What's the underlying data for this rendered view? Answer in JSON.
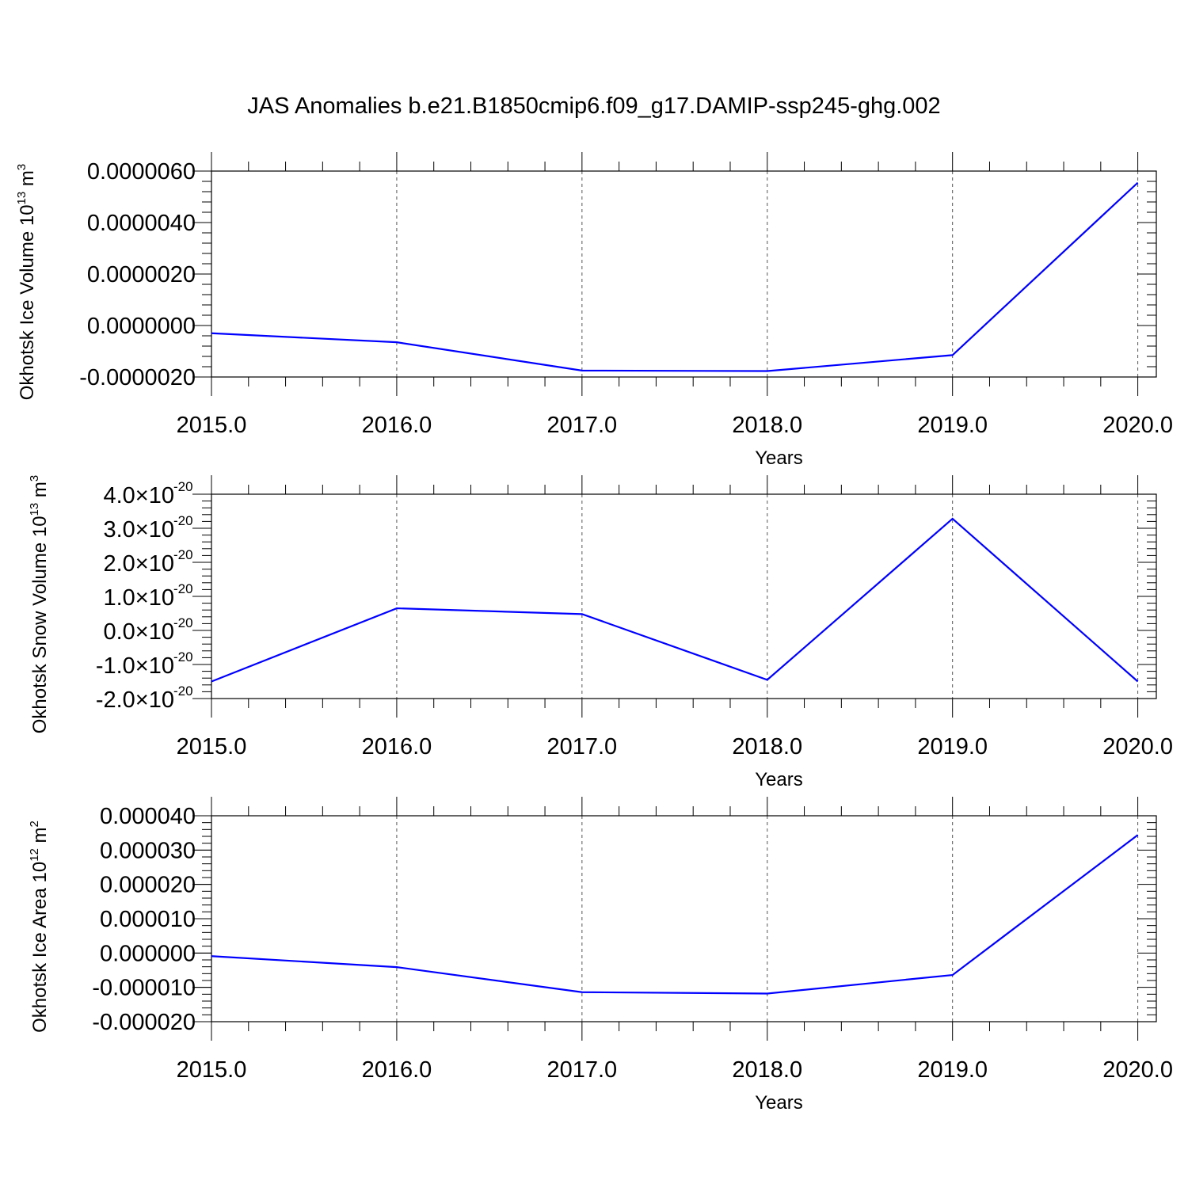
{
  "figure": {
    "title": "JAS Anomalies b.e21.B1850cmip6.f09_g17.DAMIP-ssp245-ghg.002"
  },
  "chart_data": [
    {
      "type": "line",
      "ylabel": "Okhotsk Ice Volume 10",
      "ylabel_exp": "13",
      "ylabel_unit": " m",
      "ylabel_unit_exp": "3",
      "xlabel": "Years",
      "x": [
        2015,
        2016,
        2017,
        2018,
        2019,
        2020
      ],
      "values": [
        -3e-07,
        -6.5e-07,
        -1.75e-06,
        -1.77e-06,
        -1.15e-06,
        5.55e-06
      ],
      "xlim": [
        2015,
        2020.1
      ],
      "ylim": [
        -2e-06,
        6e-06
      ],
      "x_ticks": [
        "2015.0",
        "2016.0",
        "2017.0",
        "2018.0",
        "2019.0",
        "2020.0"
      ],
      "y_ticks": [
        {
          "value": -2e-06,
          "label": "-0.0000020"
        },
        {
          "value": 0.0,
          "label": "0.0000000"
        },
        {
          "value": 2e-06,
          "label": "0.0000020"
        },
        {
          "value": 4e-06,
          "label": "0.0000040"
        },
        {
          "value": 6e-06,
          "label": "0.0000060"
        }
      ],
      "line_color": "#0000ff",
      "vgrid": true
    },
    {
      "type": "line",
      "ylabel": "Okhotsk Snow Volume 10",
      "ylabel_exp": "13",
      "ylabel_unit": " m",
      "ylabel_unit_exp": "3",
      "xlabel": "Years",
      "x": [
        2015,
        2016,
        2017,
        2018,
        2019,
        2020
      ],
      "values": [
        -1.5e-20,
        6.5e-21,
        4.8e-21,
        -1.45e-20,
        3.28e-20,
        -1.5e-20
      ],
      "xlim": [
        2015,
        2020.1
      ],
      "ylim": [
        -2e-20,
        4e-20
      ],
      "x_ticks": [
        "2015.0",
        "2016.0",
        "2017.0",
        "2018.0",
        "2019.0",
        "2020.0"
      ],
      "y_ticks": [
        {
          "value": -2e-20,
          "mant": "-2.0",
          "exp": "-20"
        },
        {
          "value": -1e-20,
          "mant": "-1.0",
          "exp": "-20"
        },
        {
          "value": 0.0,
          "mant": "0.0",
          "exp": "-20"
        },
        {
          "value": 1e-20,
          "mant": "1.0",
          "exp": "-20"
        },
        {
          "value": 2e-20,
          "mant": "2.0",
          "exp": "-20"
        },
        {
          "value": 3e-20,
          "mant": "3.0",
          "exp": "-20"
        },
        {
          "value": 4e-20,
          "mant": "4.0",
          "exp": "-20"
        }
      ],
      "line_color": "#0000ff",
      "vgrid": true
    },
    {
      "type": "line",
      "ylabel": "Okhotsk Ice Area 10",
      "ylabel_exp": "12",
      "ylabel_unit": " m",
      "ylabel_unit_exp": "2",
      "xlabel": "Years",
      "x": [
        2015,
        2016,
        2017,
        2018,
        2019,
        2020
      ],
      "values": [
        -9e-07,
        -4.1e-06,
        -1.14e-05,
        -1.18e-05,
        -6.4e-06,
        3.44e-05
      ],
      "xlim": [
        2015,
        2020.1
      ],
      "ylim": [
        -2e-05,
        4e-05
      ],
      "x_ticks": [
        "2015.0",
        "2016.0",
        "2017.0",
        "2018.0",
        "2019.0",
        "2020.0"
      ],
      "y_ticks": [
        {
          "value": -2e-05,
          "label": "-0.000020"
        },
        {
          "value": -1e-05,
          "label": "-0.000010"
        },
        {
          "value": 0.0,
          "label": "0.000000"
        },
        {
          "value": 1e-05,
          "label": "0.000010"
        },
        {
          "value": 2e-05,
          "label": "0.000020"
        },
        {
          "value": 3e-05,
          "label": "0.000030"
        },
        {
          "value": 4e-05,
          "label": "0.000040"
        }
      ],
      "line_color": "#0000ff",
      "vgrid": true
    }
  ]
}
